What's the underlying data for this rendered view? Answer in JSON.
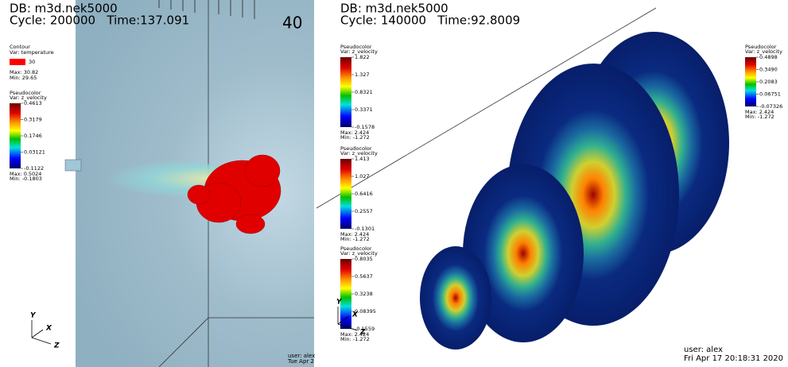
{
  "panels": [
    {
      "db": "DB: m3d.nek5000",
      "cycle": "Cycle: 200000   Time:137.091",
      "scale_label": "40",
      "contour": {
        "title": "Contour",
        "var": "Var: temperature",
        "level": "30",
        "max": "Max: 30.82",
        "min": "Min: 29.65"
      },
      "legends": [
        {
          "title": "Pseudocolor",
          "var": "Var: z_velocity",
          "ticks": [
            "0.4613",
            "0.3179",
            "0.1746",
            "0.03121",
            "-0.1122"
          ],
          "max": "Max: 0.5024",
          "min": "Min: -0.1803"
        }
      ],
      "axes": [
        "Y",
        "X",
        "Z"
      ],
      "user": "user: alex",
      "date": "Tue Apr 2"
    },
    {
      "db": "DB: m3d.nek5000",
      "cycle": "Cycle: 140000   Time:92.8009",
      "legends": [
        {
          "title": "Pseudocolor",
          "var": "Var: z_velocity",
          "ticks": [
            "1.822",
            "1.327",
            "0.8321",
            "0.3371",
            "-0.1578"
          ],
          "max": "Max: 2.424",
          "min": "Min: -1.272"
        },
        {
          "title": "Pseudocolor",
          "var": "Var: z_velocity",
          "ticks": [
            "1.413",
            "1.027",
            "0.6416",
            "0.2557",
            "-0.1301"
          ],
          "max": "Max: 2.424",
          "min": "Min: -1.272"
        },
        {
          "title": "Pseudocolor",
          "var": "Var: z_velocity",
          "ticks": [
            "0.8035",
            "0.5637",
            "0.3238",
            "0.08395",
            "-0.1559"
          ],
          "max": "Max: 2.424",
          "min": "Min: -1.272"
        },
        {
          "title": "Pseudocolor",
          "var": "Var: z_velocity",
          "ticks": [
            "0.4898",
            "0.3490",
            "0.2083",
            "0.06751",
            "-0.07326"
          ],
          "max": "Max: 2.424",
          "min": "Min: -1.272"
        }
      ],
      "axes": [
        "Y",
        "X",
        "Z"
      ],
      "user": "user: alex",
      "date": "Fri Apr 17 20:18:31 2020"
    }
  ]
}
